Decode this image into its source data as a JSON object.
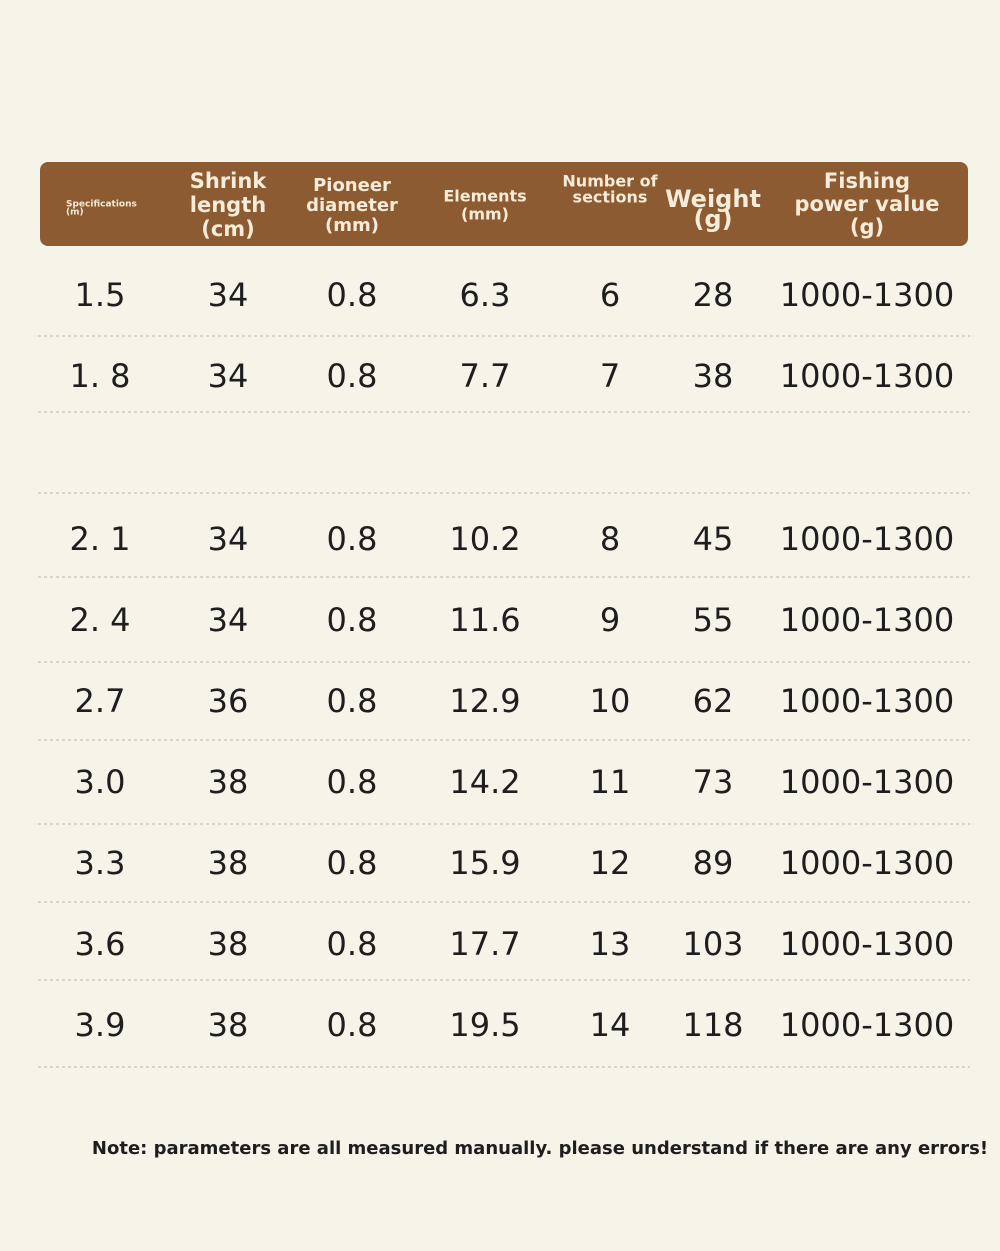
{
  "table": {
    "headers": [
      [
        "Specifications",
        "(m)"
      ],
      [
        "Shrink",
        "length",
        "(cm)"
      ],
      [
        "Pioneer",
        "diameter",
        "(mm)"
      ],
      [
        "Elements",
        "(mm)"
      ],
      [
        "Number of",
        "sections"
      ],
      [
        "Weight",
        "(g)"
      ],
      [
        "Fishing",
        "power value",
        "(g)"
      ]
    ],
    "rows": [
      [
        "1.5",
        "34",
        "0.8",
        "6.3",
        "6",
        "28",
        "1000-1300"
      ],
      [
        "1. 8",
        "34",
        "0.8",
        "7.7",
        "7",
        "38",
        "1000-1300"
      ],
      [
        "2. 1",
        "34",
        "0.8",
        "10.2",
        "8",
        "45",
        "1000-1300"
      ],
      [
        "2. 4",
        "34",
        "0.8",
        "11.6",
        "9",
        "55",
        "1000-1300"
      ],
      [
        "2.7",
        "36",
        "0.8",
        "12.9",
        "10",
        "62",
        "1000-1300"
      ],
      [
        "3.0",
        "38",
        "0.8",
        "14.2",
        "11",
        "73",
        "1000-1300"
      ],
      [
        "3.3",
        "38",
        "0.8",
        "15.9",
        "12",
        "89",
        "1000-1300"
      ],
      [
        "3.6",
        "38",
        "0.8",
        "17.7",
        "13",
        "103",
        "1000-1300"
      ],
      [
        "3.9",
        "38",
        "0.8",
        "19.5",
        "14",
        "118",
        "1000-1300"
      ]
    ]
  },
  "note": "Note: parameters are all measured manually. please understand if there are any errors!"
}
